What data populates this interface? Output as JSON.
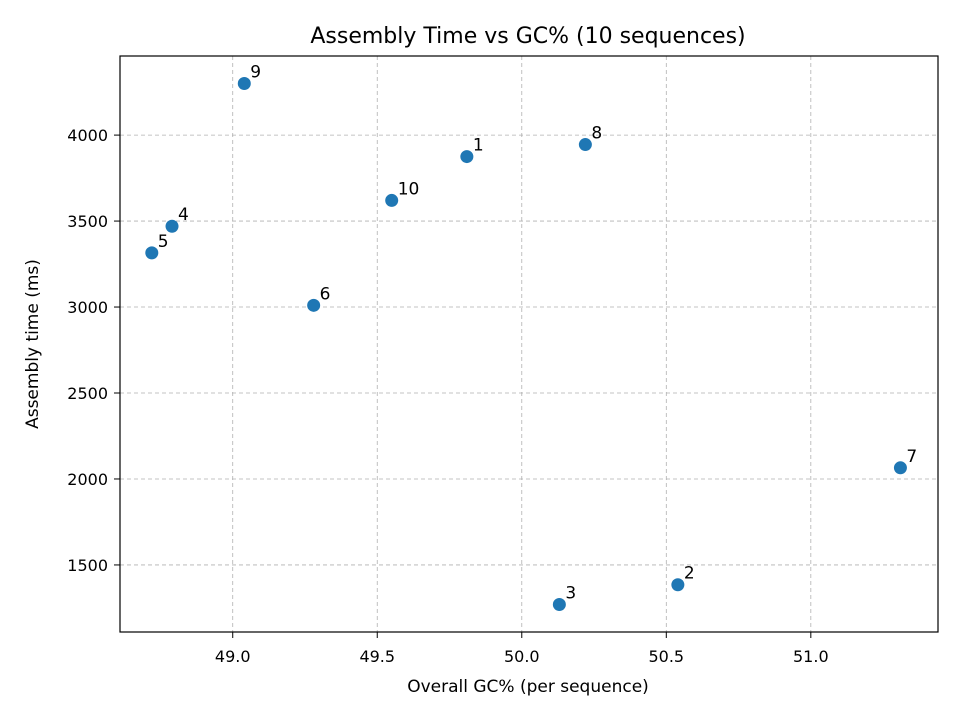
{
  "chart_data": {
    "type": "scatter",
    "title": "Assembly Time vs GC% (10 sequences)",
    "xlabel": "Overall GC% (per sequence)",
    "ylabel": "Assembly time (ms)",
    "xlim": [
      48.61,
      51.44
    ],
    "ylim": [
      1110,
      4460
    ],
    "xticks": [
      49.0,
      49.5,
      50.0,
      50.5,
      51.0
    ],
    "xtick_labels": [
      "49.0",
      "49.5",
      "50.0",
      "50.5",
      "51.0"
    ],
    "yticks": [
      1500,
      2000,
      2500,
      3000,
      3500,
      4000
    ],
    "ytick_labels": [
      "1500",
      "2000",
      "2500",
      "3000",
      "3500",
      "4000"
    ],
    "grid": true,
    "marker_color": "#1f77b4",
    "points": [
      {
        "label": "1",
        "x": 49.81,
        "y": 3875
      },
      {
        "label": "2",
        "x": 50.54,
        "y": 1385
      },
      {
        "label": "3",
        "x": 50.13,
        "y": 1270
      },
      {
        "label": "4",
        "x": 48.79,
        "y": 3470
      },
      {
        "label": "5",
        "x": 48.72,
        "y": 3315
      },
      {
        "label": "6",
        "x": 49.28,
        "y": 3010
      },
      {
        "label": "7",
        "x": 51.31,
        "y": 2065
      },
      {
        "label": "8",
        "x": 50.22,
        "y": 3945
      },
      {
        "label": "9",
        "x": 49.04,
        "y": 4300
      },
      {
        "label": "10",
        "x": 49.55,
        "y": 3620
      }
    ]
  }
}
